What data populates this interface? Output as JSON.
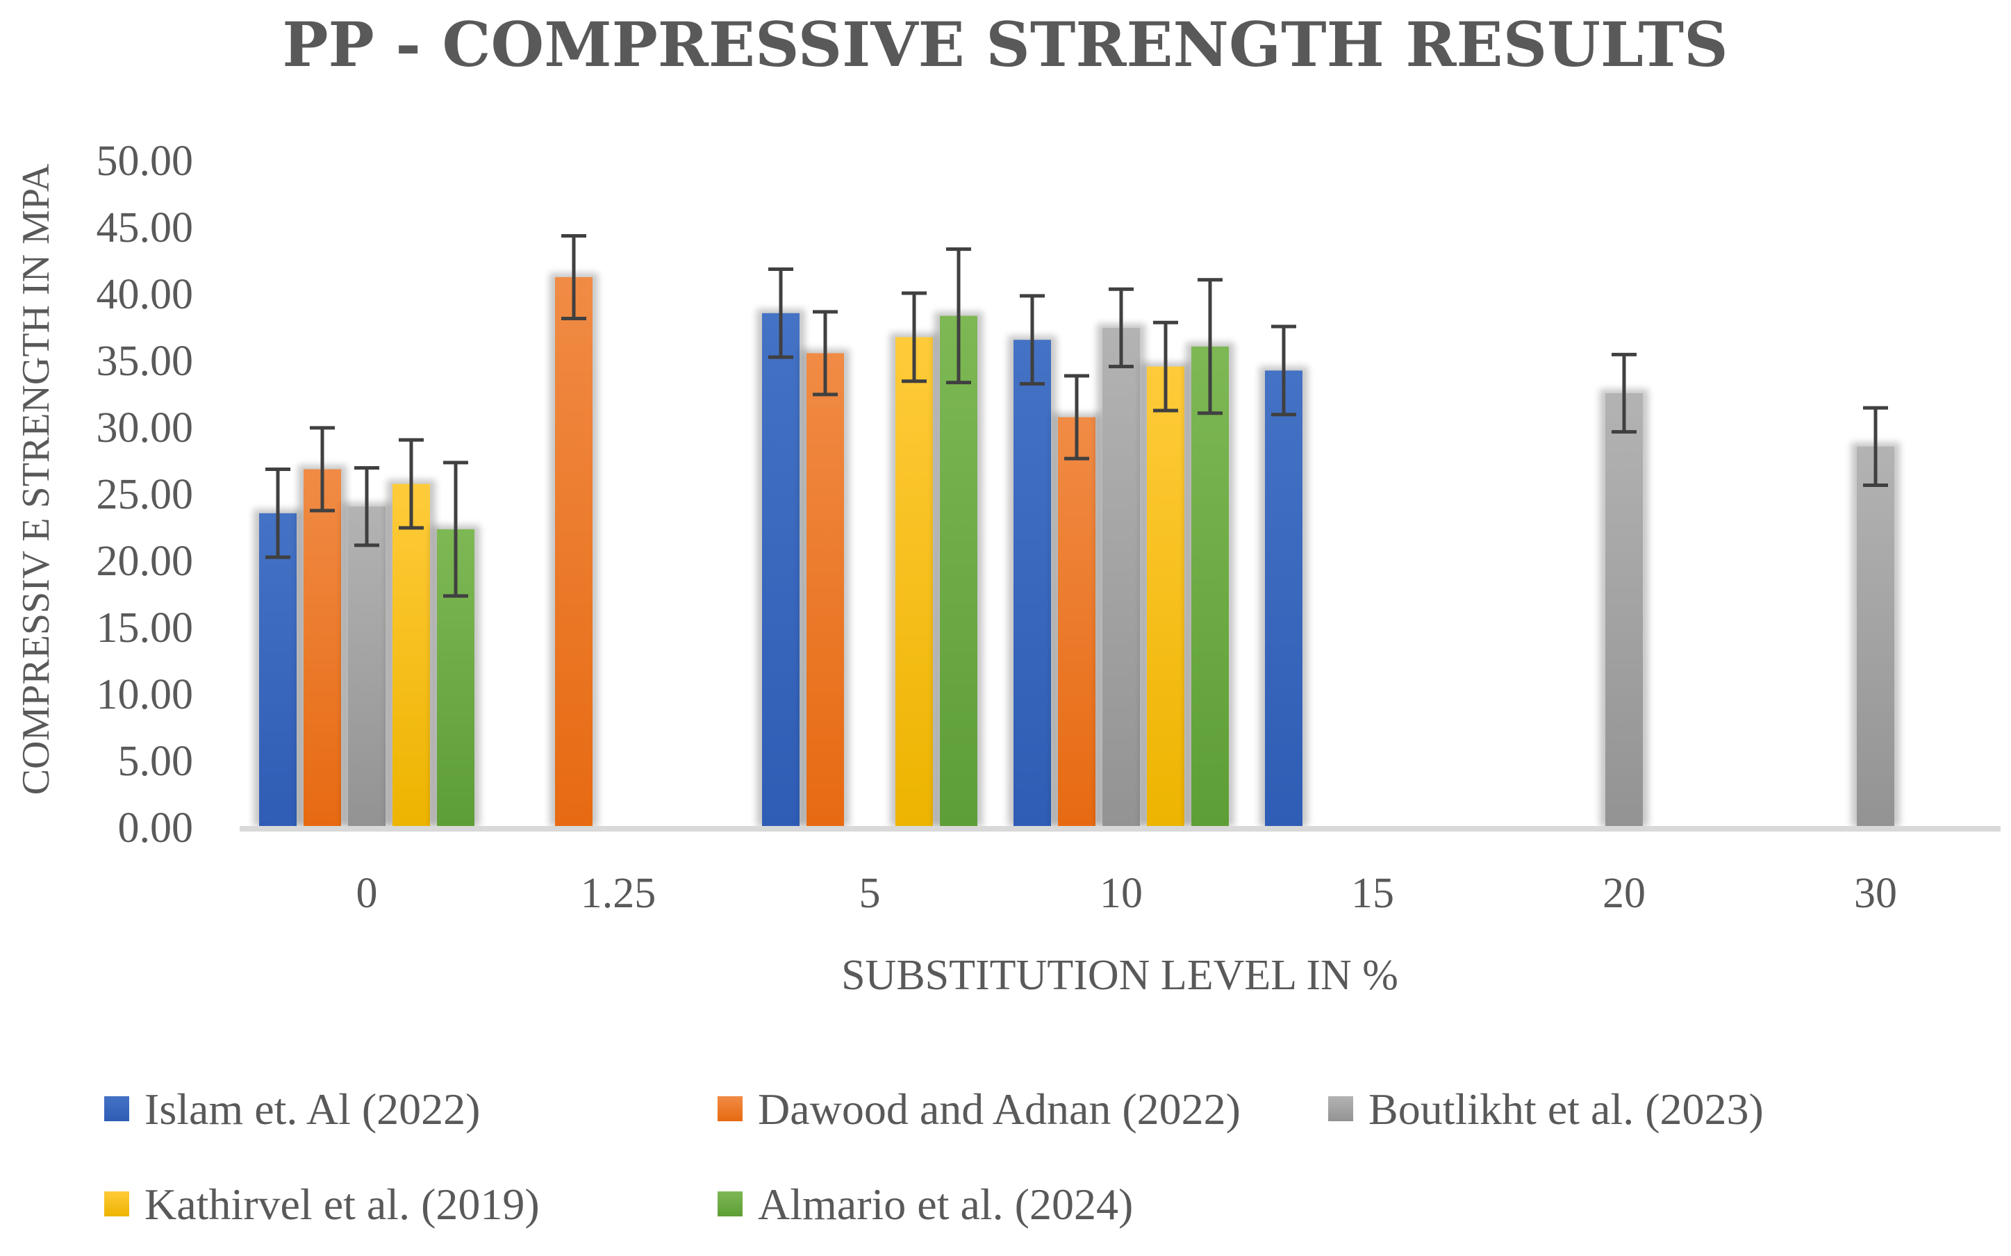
{
  "chart_data": {
    "type": "bar",
    "title": "PP - COMPRESSIVE STRENGTH RESULTS",
    "xlabel": "SUBSTITUTION LEVEL IN %",
    "ylabel": "COMPRESSIV E STRENGTH IN MPA",
    "ylim": [
      0,
      50
    ],
    "ytick_step": 5,
    "ytick_labels": [
      "0.00",
      "5.00",
      "10.00",
      "15.00",
      "20.00",
      "25.00",
      "30.00",
      "35.00",
      "40.00",
      "45.00",
      "50.00"
    ],
    "categories": [
      "0",
      "1.25",
      "5",
      "10",
      "15",
      "20",
      "30"
    ],
    "series": [
      {
        "name": "Islam et. Al (2022)",
        "color": "#4472C4",
        "values": [
          23.5,
          null,
          38.5,
          36.5,
          34.2,
          null,
          null
        ],
        "errors": [
          3.3,
          null,
          3.3,
          3.3,
          3.3,
          null,
          null
        ]
      },
      {
        "name": "Dawood and Adnan (2022)",
        "color": "#ED7D31",
        "values": [
          26.8,
          41.2,
          35.5,
          30.7,
          null,
          null,
          null
        ],
        "errors": [
          3.1,
          3.1,
          3.1,
          3.1,
          null,
          null,
          null
        ]
      },
      {
        "name": "Boutlikht et al. (2023)",
        "color": "#A5A5A5",
        "values": [
          24.0,
          null,
          null,
          37.4,
          null,
          32.5,
          28.5
        ],
        "errors": [
          2.9,
          null,
          null,
          2.9,
          null,
          2.9,
          2.9
        ]
      },
      {
        "name": "Kathirvel et al. (2019)",
        "color": "#FFC000",
        "values": [
          25.7,
          null,
          36.7,
          34.5,
          null,
          null,
          null
        ],
        "errors": [
          3.3,
          null,
          3.3,
          3.3,
          null,
          null,
          null
        ]
      },
      {
        "name": "Almario et al. (2024)",
        "color": "#70AD47",
        "values": [
          22.3,
          null,
          38.3,
          36.0,
          null,
          null,
          null
        ],
        "errors": [
          5.0,
          null,
          5.0,
          5.0,
          null,
          null,
          null
        ]
      }
    ],
    "legend_position": "bottom",
    "grid": false
  }
}
